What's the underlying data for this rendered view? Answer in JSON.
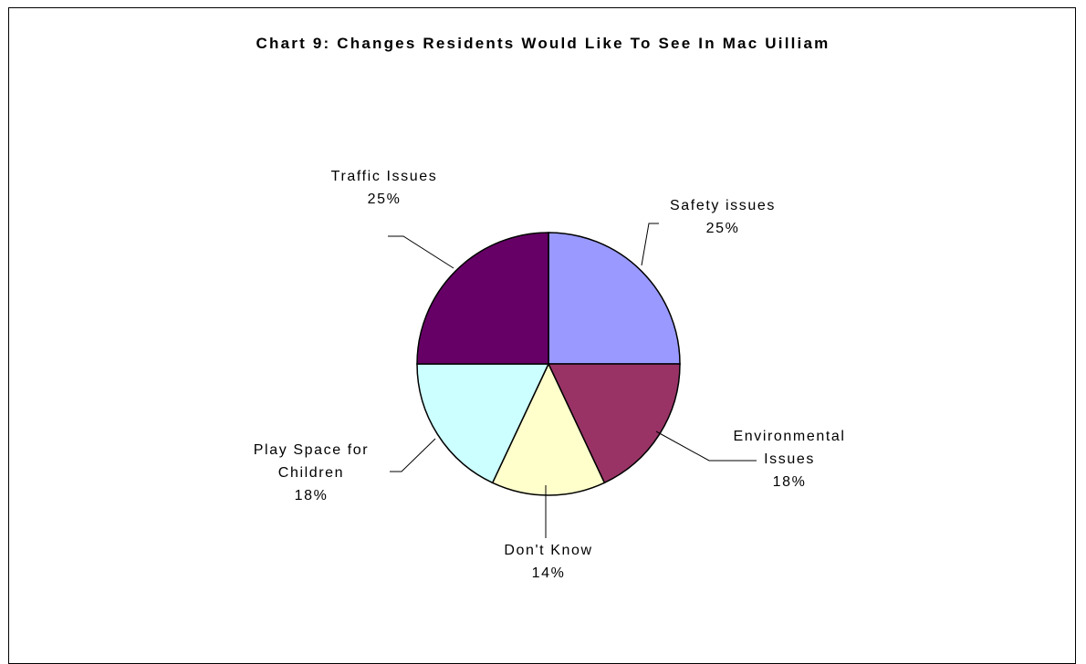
{
  "chart_data": {
    "type": "pie",
    "title": "Chart 9: Changes Residents Would Like To See In Mac Uilliam",
    "slices": [
      {
        "label": "Safety issues",
        "label_lines": [
          "Safety issues"
        ],
        "percent_label": "25%",
        "value": 25,
        "color": "#9999FF"
      },
      {
        "label": "Environmental Issues",
        "label_lines": [
          "Environmental",
          "Issues"
        ],
        "percent_label": "18%",
        "value": 18,
        "color": "#993366"
      },
      {
        "label": "Don't Know",
        "label_lines": [
          "Don't Know"
        ],
        "percent_label": "14%",
        "value": 14,
        "color": "#FFFFCC"
      },
      {
        "label": "Play Space for Children",
        "label_lines": [
          "Play Space for",
          "Children"
        ],
        "percent_label": "18%",
        "value": 18,
        "color": "#CCFFFF"
      },
      {
        "label": "Traffic Issues",
        "label_lines": [
          "Traffic Issues"
        ],
        "percent_label": "25%",
        "value": 25,
        "color": "#660066"
      }
    ],
    "start_angle_deg": 0,
    "direction": "clockwise",
    "legend": "none",
    "data_labels": "category name and percentage"
  }
}
